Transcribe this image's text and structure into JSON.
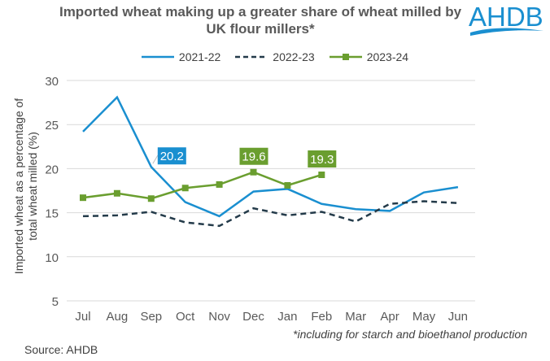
{
  "title": "Imported wheat making up a greater share of wheat milled by UK flour millers*",
  "logo_text": "AHDB",
  "note": "*including for starch and bioethanol production",
  "source": "Source: AHDB",
  "chart_data": {
    "type": "line",
    "title": "Imported wheat making up a greater share of wheat milled by UK flour millers*",
    "ylabel": "Imported wheat as a percentage of total wheat milled (%)",
    "xlabel": "",
    "categories": [
      "Jul",
      "Aug",
      "Sep",
      "Oct",
      "Nov",
      "Dec",
      "Jan",
      "Feb",
      "Mar",
      "Apr",
      "May",
      "Jun"
    ],
    "ylim": [
      5,
      30
    ],
    "yticks": [
      5,
      10,
      15,
      20,
      25,
      30
    ],
    "grid": true,
    "legend": "top",
    "series": [
      {
        "name": "2021-22",
        "color": "#1a8fd0",
        "style": "solid",
        "values": [
          24.2,
          28.1,
          20.2,
          16.2,
          14.6,
          17.4,
          17.7,
          16.0,
          15.4,
          15.2,
          17.3,
          17.9
        ]
      },
      {
        "name": "2022-23",
        "color": "#243b4a",
        "style": "dashed",
        "values": [
          14.6,
          14.7,
          15.1,
          13.9,
          13.5,
          15.5,
          14.7,
          15.1,
          14.0,
          16.0,
          16.3,
          16.1
        ]
      },
      {
        "name": "2023-24",
        "color": "#6a9e2f",
        "style": "markers",
        "values": [
          16.7,
          17.2,
          16.6,
          17.8,
          18.2,
          19.6,
          18.1,
          19.3,
          null,
          null,
          null,
          null
        ]
      }
    ],
    "annotations": [
      {
        "series": "2021-22",
        "category": "Sep",
        "label": "20.2"
      },
      {
        "series": "2023-24",
        "category": "Dec",
        "label": "19.6"
      },
      {
        "series": "2023-24",
        "category": "Feb",
        "label": "19.3"
      }
    ]
  }
}
